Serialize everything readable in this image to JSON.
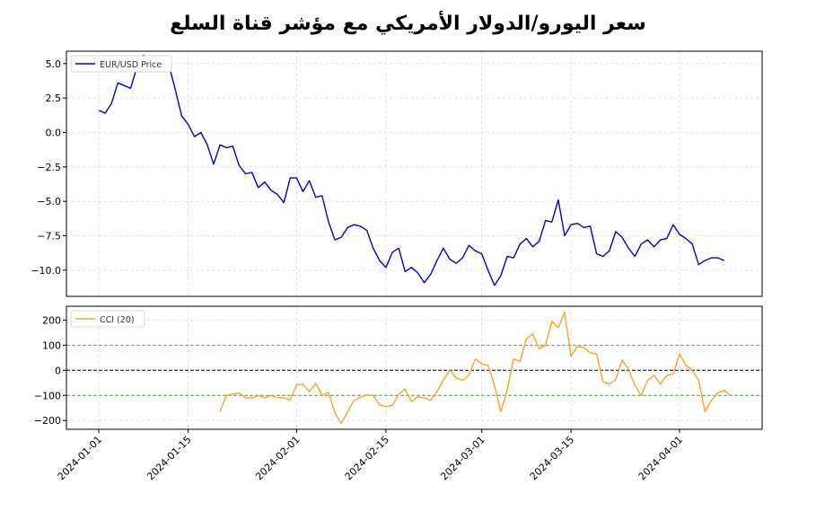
{
  "title": "سعر اليورو/الدولار الأمريكي مع مؤشر قناة السلع",
  "chart_data": [
    {
      "type": "line",
      "name": "price-panel",
      "x_start": "2024-01-01",
      "x_end": "2024-04-09",
      "ylim": [
        -11.9,
        5.9
      ],
      "yticks": [
        5.0,
        2.5,
        0.0,
        -2.5,
        -5.0,
        -7.5,
        -10.0
      ],
      "ytick_labels": [
        "5.0",
        "2.5",
        "0.0",
        "−2.5",
        "−5.0",
        "−7.5",
        "−10.0"
      ],
      "grid": true,
      "legend": "top-left",
      "series": [
        {
          "name": "EUR/USD Price",
          "color": "#0000cc",
          "values": [
            1.6,
            1.4,
            2.1,
            3.6,
            3.4,
            3.2,
            4.8,
            5.6,
            5.4,
            5.2,
            4.7,
            4.9,
            3.1,
            1.2,
            0.6,
            -0.3,
            0.0,
            -0.9,
            -2.3,
            -0.9,
            -1.1,
            -1.0,
            -2.4,
            -3.0,
            -2.9,
            -4.0,
            -3.6,
            -4.2,
            -4.5,
            -5.1,
            -3.3,
            -3.3,
            -4.3,
            -3.5,
            -4.7,
            -4.6,
            -6.5,
            -7.8,
            -7.6,
            -6.9,
            -6.7,
            -6.8,
            -7.1,
            -8.4,
            -9.3,
            -9.8,
            -8.7,
            -8.4,
            -10.1,
            -9.8,
            -10.2,
            -10.9,
            -10.3,
            -9.3,
            -8.4,
            -9.2,
            -9.5,
            -9.1,
            -8.2,
            -8.6,
            -8.8,
            -10.0,
            -11.1,
            -10.4,
            -9.0,
            -9.1,
            -8.1,
            -7.7,
            -8.3,
            -7.9,
            -6.4,
            -6.5,
            -4.9,
            -7.5,
            -6.7,
            -6.6,
            -6.9,
            -6.8,
            -8.8,
            -9.0,
            -8.6,
            -7.2,
            -7.6,
            -8.4,
            -9.0,
            -8.1,
            -7.8,
            -8.3,
            -7.8,
            -7.7,
            -6.7,
            -7.4,
            -7.7,
            -8.1,
            -9.6,
            -9.3,
            -9.1,
            -9.1,
            -9.3
          ]
        }
      ]
    },
    {
      "type": "line",
      "name": "cci-panel",
      "x_start": "2024-01-01",
      "x_end": "2024-04-09",
      "ylim": [
        -235,
        255
      ],
      "yticks": [
        200,
        100,
        0,
        -100,
        -200
      ],
      "ytick_labels": [
        "200",
        "100",
        "0",
        "−100",
        "−200"
      ],
      "hlines": [
        {
          "y": 100,
          "color": "#e06060"
        },
        {
          "y": 0,
          "color": "#000000"
        },
        {
          "y": -100,
          "color": "#4a9a4a"
        }
      ],
      "grid": true,
      "legend": "top-left",
      "series": [
        {
          "name": "CCI (20)",
          "color": "#f5a623",
          "start_index": 19,
          "values": [
            -165,
            -100,
            -95,
            -90,
            -110,
            -110,
            -100,
            -110,
            -100,
            -108,
            -110,
            -118,
            -58,
            -55,
            -85,
            -52,
            -100,
            -88,
            -170,
            -212,
            -165,
            -120,
            -108,
            -98,
            -100,
            -138,
            -145,
            -140,
            -95,
            -75,
            -125,
            -105,
            -110,
            -120,
            -85,
            -40,
            0,
            -30,
            -40,
            -20,
            45,
            25,
            20,
            -60,
            -165,
            -80,
            45,
            35,
            125,
            145,
            85,
            100,
            195,
            170,
            230,
            55,
            95,
            90,
            70,
            65,
            -45,
            -55,
            -38,
            40,
            5,
            -60,
            -100,
            -40,
            -20,
            -55,
            -20,
            -15,
            65,
            20,
            0,
            -40,
            -165,
            -120,
            -90,
            -80,
            -100
          ]
        }
      ]
    }
  ],
  "x_axis": {
    "ticks": [
      {
        "date": "2024-01-01",
        "label": "2024-01-01"
      },
      {
        "date": "2024-01-15",
        "label": "2024-01-15"
      },
      {
        "date": "2024-02-01",
        "label": "2024-02-01"
      },
      {
        "date": "2024-02-15",
        "label": "2024-02-15"
      },
      {
        "date": "2024-03-01",
        "label": "2024-03-01"
      },
      {
        "date": "2024-03-15",
        "label": "2024-03-15"
      },
      {
        "date": "2024-04-01",
        "label": "2024-04-01"
      }
    ]
  },
  "colors": {
    "grid": "#d9d9d9",
    "axis": "#000000"
  }
}
